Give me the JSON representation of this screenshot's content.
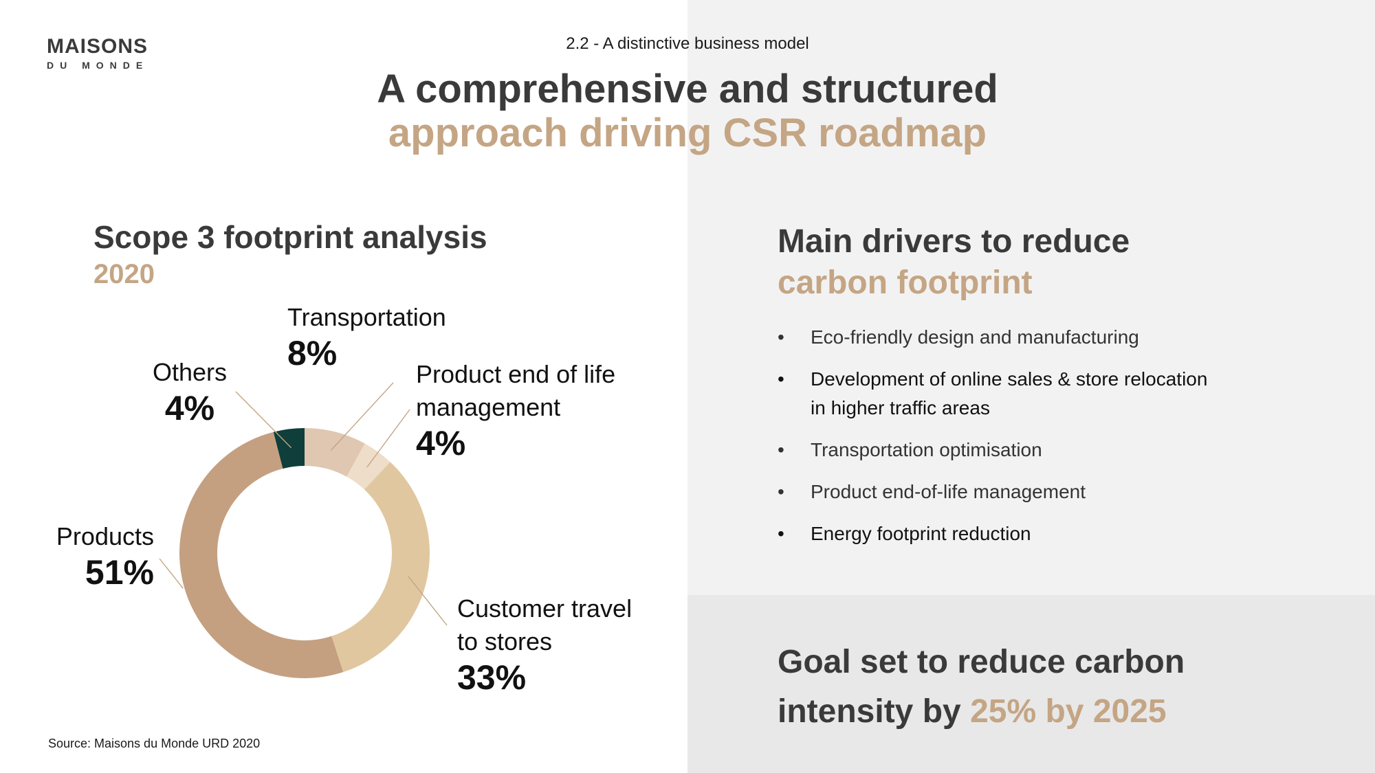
{
  "logo": {
    "main": "MAISONS",
    "sub": "DU MONDE"
  },
  "section_tag": "2.2 - A distinctive business model",
  "headline": {
    "line1": "A comprehensive and structured",
    "line2": "approach driving CSR roadmap"
  },
  "chart_data": {
    "type": "pie",
    "title": "Scope 3 footprint analysis",
    "subtitle": "2020",
    "slices": [
      {
        "label": "Transportation",
        "value": 8,
        "display": "8%",
        "color": "#dfc7b1"
      },
      {
        "label": "Product end of life management",
        "value": 4,
        "display": "4%",
        "color": "#eeddc8"
      },
      {
        "label": "Customer travel to stores",
        "value": 33,
        "display": "33%",
        "color": "#e0c7a0"
      },
      {
        "label": "Products",
        "value": 51,
        "display": "51%",
        "color": "#c4a081"
      },
      {
        "label": "Others",
        "value": 4,
        "display": "4%",
        "color": "#0f3e3b"
      }
    ],
    "label_lines": {
      "transportation": "Transportation",
      "eol_1": "Product end of life",
      "eol_2": "management",
      "customer_1": "Customer travel",
      "customer_2": "to stores",
      "products": "Products",
      "others": "Others"
    }
  },
  "source": "Source: Maisons du Monde URD 2020",
  "drivers": {
    "title_line1": "Main drivers to reduce",
    "title_line2": "carbon footprint",
    "bullet": "•",
    "items": [
      {
        "line1": "Eco-friendly design and manufacturing",
        "line2": ""
      },
      {
        "line1": "Development of online sales & store relocation",
        "line2": "in higher traffic areas"
      },
      {
        "line1": "Transportation optimisation",
        "line2": ""
      },
      {
        "line1": "Product end-of-life management",
        "line2": ""
      },
      {
        "line1": "Energy footprint reduction",
        "line2": ""
      }
    ]
  },
  "goal": {
    "line1": "Goal set to reduce carbon",
    "line2_prefix": "intensity by ",
    "line2_highlight": "25% by 2025"
  }
}
